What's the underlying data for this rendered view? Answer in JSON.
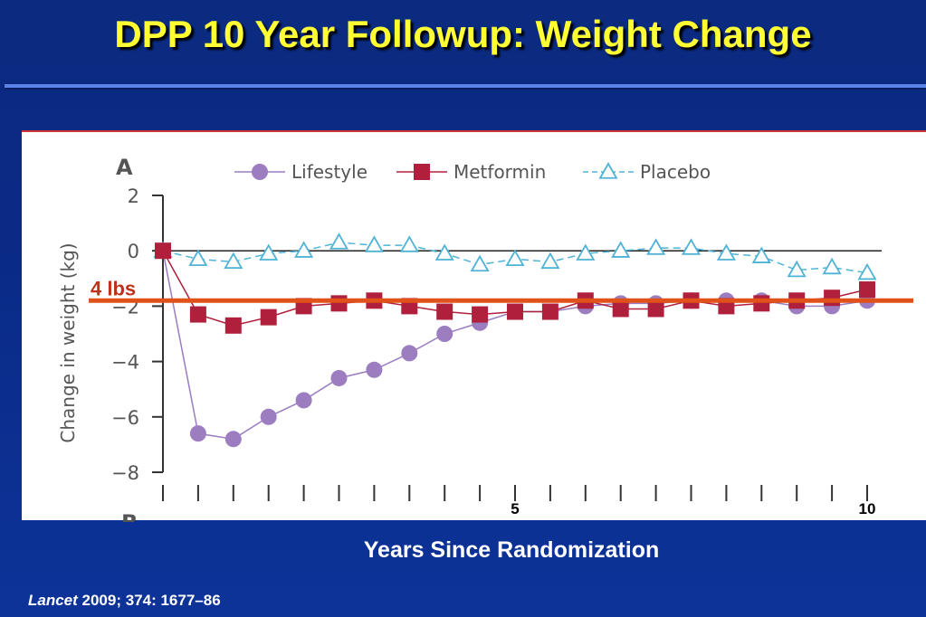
{
  "slide": {
    "title": "DPP 10 Year Followup: Weight Change",
    "x_axis_title": "Years Since Randomization",
    "citation_journal": "Lancet",
    "citation_rest": " 2009; 374: 1677–86"
  },
  "colors": {
    "background": "#0a2a86",
    "title": "#ffff33",
    "rule": "#5b82e8",
    "lifestyle": "#9b7dc0",
    "metformin": "#b0203c",
    "placebo": "#4fb3d6",
    "annotation_line": "#e0521a",
    "annotation_text": "#c0301a"
  },
  "chart_data": {
    "type": "line",
    "panel_label": "A",
    "next_panel_label": "B",
    "ylabel": "Change in weight (kg)",
    "ylim": [
      -8,
      2
    ],
    "yticks": [
      2,
      0,
      -2,
      -4,
      -6,
      -8
    ],
    "ytick_labels": [
      "2",
      "0",
      "−2",
      "−4",
      "−6",
      "−8"
    ],
    "xlim": [
      0,
      10
    ],
    "xtick_labels": [
      {
        "x": 5,
        "label": "5"
      },
      {
        "x": 10,
        "label": "10"
      }
    ],
    "legend_position": "top",
    "zero_line": true,
    "reference_line": {
      "y": -1.8,
      "label": "4 lbs"
    },
    "series": [
      {
        "name": "Lifestyle",
        "marker": "circle",
        "x": [
          0,
          0.5,
          1,
          1.5,
          2,
          2.5,
          3,
          3.5,
          4,
          4.5,
          5,
          5.5,
          6,
          6.5,
          7,
          7.5,
          8,
          8.5,
          9,
          9.5,
          10
        ],
        "y": [
          0,
          -6.6,
          -6.8,
          -6.0,
          -5.4,
          -4.6,
          -4.3,
          -3.7,
          -3.0,
          -2.6,
          -2.2,
          -2.2,
          -2.0,
          -1.9,
          -1.9,
          -1.8,
          -1.8,
          -1.8,
          -2.0,
          -2.0,
          -1.8
        ]
      },
      {
        "name": "Metformin",
        "marker": "square",
        "x": [
          0,
          0.5,
          1,
          1.5,
          2,
          2.5,
          3,
          3.5,
          4,
          4.5,
          5,
          5.5,
          6,
          6.5,
          7,
          7.5,
          8,
          8.5,
          9,
          9.5,
          10
        ],
        "y": [
          0,
          -2.3,
          -2.7,
          -2.4,
          -2.0,
          -1.9,
          -1.8,
          -2.0,
          -2.2,
          -2.3,
          -2.2,
          -2.2,
          -1.8,
          -2.1,
          -2.1,
          -1.8,
          -2.0,
          -1.9,
          -1.8,
          -1.7,
          -1.4
        ]
      },
      {
        "name": "Placebo",
        "marker": "triangle",
        "x": [
          0,
          0.5,
          1,
          1.5,
          2,
          2.5,
          3,
          3.5,
          4,
          4.5,
          5,
          5.5,
          6,
          6.5,
          7,
          7.5,
          8,
          8.5,
          9,
          9.5,
          10
        ],
        "y": [
          0,
          -0.3,
          -0.4,
          -0.1,
          0.0,
          0.3,
          0.2,
          0.2,
          -0.1,
          -0.5,
          -0.3,
          -0.4,
          -0.1,
          0.0,
          0.1,
          0.1,
          -0.1,
          -0.2,
          -0.7,
          -0.6,
          -0.8
        ]
      }
    ]
  }
}
